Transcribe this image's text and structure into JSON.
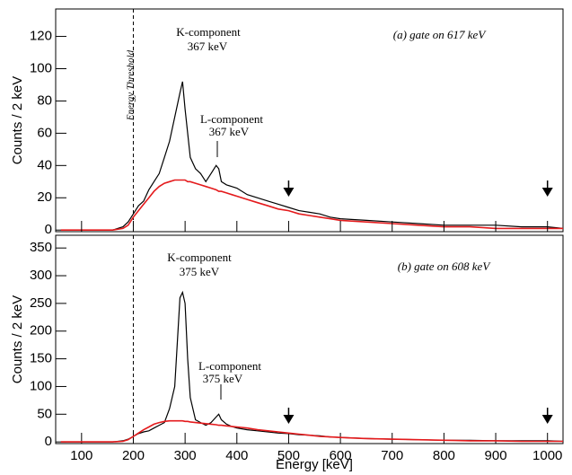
{
  "chart_data": [
    {
      "type": "line",
      "y_label": "Counts / 2 keV",
      "xlim": [
        50,
        1030
      ],
      "ylim": [
        -1,
        137
      ],
      "yticks": [
        0,
        20,
        40,
        60,
        80,
        100,
        120
      ],
      "threshold": 200,
      "arrows_x": [
        500,
        1000
      ],
      "annotations": [
        "K-component",
        "367 keV",
        "L-component",
        "367 keV",
        "(a) gate on 617 keV",
        "Energy Threshold"
      ],
      "x": [
        60,
        100,
        140,
        160,
        180,
        190,
        200,
        210,
        220,
        230,
        240,
        250,
        260,
        270,
        280,
        290,
        295,
        300,
        305,
        310,
        320,
        330,
        340,
        350,
        360,
        365,
        370,
        380,
        390,
        400,
        420,
        440,
        460,
        480,
        500,
        520,
        540,
        560,
        580,
        600,
        650,
        700,
        750,
        800,
        850,
        900,
        950,
        1000,
        1030
      ],
      "series": [
        {
          "color": "#000000",
          "values": [
            0,
            0,
            0,
            0,
            2,
            5,
            10,
            15,
            18,
            25,
            30,
            35,
            45,
            55,
            70,
            85,
            92,
            75,
            60,
            45,
            38,
            35,
            30,
            35,
            40,
            38,
            30,
            28,
            27,
            26,
            22,
            20,
            18,
            16,
            14,
            12,
            11,
            10,
            8,
            7,
            6,
            5,
            4,
            3,
            3,
            3,
            2,
            2,
            1
          ]
        },
        {
          "color": "#e41a1c",
          "values": [
            0,
            0,
            0,
            0,
            1,
            3,
            8,
            12,
            16,
            20,
            24,
            27,
            29,
            30,
            31,
            31,
            31,
            31,
            30,
            30,
            29,
            28,
            27,
            26,
            25,
            24,
            24,
            23,
            22,
            21,
            19,
            17,
            15,
            13,
            12,
            10,
            9,
            8,
            7,
            6,
            5,
            4,
            3,
            2,
            2,
            1,
            1,
            1,
            1
          ]
        }
      ]
    },
    {
      "type": "line",
      "x_label": "Energy [keV]",
      "y_label": "Counts / 2 keV",
      "xlim": [
        50,
        1030
      ],
      "ylim": [
        -3,
        373
      ],
      "xticks": [
        100,
        200,
        300,
        400,
        500,
        600,
        700,
        800,
        900,
        1000
      ],
      "yticks": [
        0,
        50,
        100,
        150,
        200,
        250,
        300,
        350
      ],
      "threshold": 200,
      "arrows_x": [
        500,
        1000
      ],
      "annotations": [
        "K-component",
        "375 keV",
        "L-component",
        "375 keV",
        "(b) gate on 608 keV"
      ],
      "x": [
        60,
        100,
        140,
        160,
        180,
        190,
        200,
        210,
        220,
        230,
        240,
        250,
        260,
        270,
        280,
        290,
        295,
        300,
        305,
        310,
        320,
        330,
        340,
        350,
        360,
        365,
        370,
        380,
        390,
        400,
        420,
        440,
        460,
        480,
        500,
        520,
        540,
        560,
        580,
        600,
        650,
        700,
        750,
        800,
        850,
        900,
        950,
        1000,
        1030
      ],
      "series": [
        {
          "color": "#000000",
          "values": [
            0,
            0,
            0,
            0,
            2,
            5,
            10,
            15,
            18,
            20,
            25,
            30,
            35,
            60,
            100,
            260,
            270,
            250,
            150,
            80,
            40,
            35,
            30,
            35,
            45,
            50,
            40,
            32,
            28,
            25,
            22,
            20,
            18,
            16,
            15,
            13,
            12,
            11,
            9,
            8,
            6,
            5,
            4,
            3,
            3,
            2,
            2,
            2,
            1
          ]
        },
        {
          "color": "#e41a1c",
          "values": [
            0,
            0,
            0,
            0,
            1,
            4,
            10,
            16,
            22,
            27,
            32,
            35,
            37,
            38,
            38,
            38,
            38,
            37,
            37,
            36,
            35,
            34,
            33,
            32,
            31,
            30,
            30,
            29,
            28,
            27,
            25,
            22,
            20,
            18,
            16,
            14,
            12,
            10,
            9,
            8,
            6,
            5,
            4,
            3,
            2,
            2,
            1,
            1,
            1
          ]
        }
      ]
    }
  ]
}
